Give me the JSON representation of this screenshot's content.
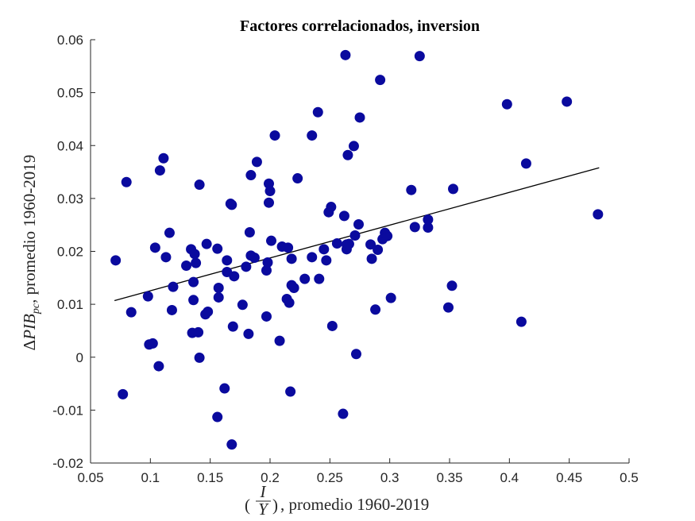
{
  "chart_data": {
    "type": "scatter",
    "title": "Factores correlacionados, inversion",
    "xlabel": "(I/Y), promedio 1960-2019",
    "ylabel": "ΔPIB_pc, promedio 1960-2019",
    "xlim": [
      0.05,
      0.5
    ],
    "ylim": [
      -0.02,
      0.06
    ],
    "xticks": [
      0.05,
      0.1,
      0.15,
      0.2,
      0.25,
      0.3,
      0.35,
      0.4,
      0.45,
      0.5
    ],
    "xtick_labels": [
      "0.05",
      "0.1",
      "0.15",
      "0.2",
      "0.25",
      "0.3",
      "0.35",
      "0.4",
      "0.45",
      "0.5"
    ],
    "yticks": [
      -0.02,
      -0.01,
      0,
      0.01,
      0.02,
      0.03,
      0.04,
      0.05,
      0.06
    ],
    "ytick_labels": [
      "-0.02",
      "-0.01",
      "0",
      "0.01",
      "0.02",
      "0.03",
      "0.04",
      "0.05",
      "0.06"
    ],
    "grid": false,
    "legend": "none",
    "marker_color": "#0a0a9e",
    "trend_line": {
      "x": [
        0.07,
        0.475
      ],
      "y": [
        0.0107,
        0.0358
      ],
      "color": "#000000"
    },
    "points": [
      {
        "x": 0.071,
        "y": 0.0183
      },
      {
        "x": 0.077,
        "y": -0.007
      },
      {
        "x": 0.08,
        "y": 0.0331
      },
      {
        "x": 0.084,
        "y": 0.0085
      },
      {
        "x": 0.098,
        "y": 0.0115
      },
      {
        "x": 0.099,
        "y": 0.0024
      },
      {
        "x": 0.102,
        "y": 0.0026
      },
      {
        "x": 0.104,
        "y": 0.0207
      },
      {
        "x": 0.107,
        "y": -0.0017
      },
      {
        "x": 0.108,
        "y": 0.0353
      },
      {
        "x": 0.111,
        "y": 0.0376
      },
      {
        "x": 0.113,
        "y": 0.0189
      },
      {
        "x": 0.116,
        "y": 0.0235
      },
      {
        "x": 0.118,
        "y": 0.0089
      },
      {
        "x": 0.119,
        "y": 0.0133
      },
      {
        "x": 0.13,
        "y": 0.0173
      },
      {
        "x": 0.134,
        "y": 0.0204
      },
      {
        "x": 0.135,
        "y": 0.0046
      },
      {
        "x": 0.136,
        "y": 0.0108
      },
      {
        "x": 0.136,
        "y": 0.0142
      },
      {
        "x": 0.137,
        "y": 0.0195
      },
      {
        "x": 0.138,
        "y": 0.0178
      },
      {
        "x": 0.14,
        "y": 0.0047
      },
      {
        "x": 0.141,
        "y": -0.0001
      },
      {
        "x": 0.141,
        "y": 0.0326
      },
      {
        "x": 0.146,
        "y": 0.0081
      },
      {
        "x": 0.147,
        "y": 0.0214
      },
      {
        "x": 0.148,
        "y": 0.0086
      },
      {
        "x": 0.156,
        "y": -0.0113
      },
      {
        "x": 0.156,
        "y": 0.0205
      },
      {
        "x": 0.157,
        "y": 0.0113
      },
      {
        "x": 0.157,
        "y": 0.0131
      },
      {
        "x": 0.162,
        "y": -0.0059
      },
      {
        "x": 0.164,
        "y": 0.0183
      },
      {
        "x": 0.164,
        "y": 0.0161
      },
      {
        "x": 0.167,
        "y": 0.029
      },
      {
        "x": 0.168,
        "y": -0.0165
      },
      {
        "x": 0.168,
        "y": 0.0288
      },
      {
        "x": 0.169,
        "y": 0.0058
      },
      {
        "x": 0.17,
        "y": 0.0153
      },
      {
        "x": 0.177,
        "y": 0.0099
      },
      {
        "x": 0.18,
        "y": 0.0171
      },
      {
        "x": 0.182,
        "y": 0.0044
      },
      {
        "x": 0.183,
        "y": 0.0236
      },
      {
        "x": 0.184,
        "y": 0.0344
      },
      {
        "x": 0.184,
        "y": 0.0192
      },
      {
        "x": 0.187,
        "y": 0.0188
      },
      {
        "x": 0.189,
        "y": 0.0369
      },
      {
        "x": 0.197,
        "y": 0.0077
      },
      {
        "x": 0.197,
        "y": 0.0164
      },
      {
        "x": 0.198,
        "y": 0.0179
      },
      {
        "x": 0.199,
        "y": 0.0292
      },
      {
        "x": 0.199,
        "y": 0.0328
      },
      {
        "x": 0.2,
        "y": 0.0314
      },
      {
        "x": 0.201,
        "y": 0.022
      },
      {
        "x": 0.204,
        "y": 0.0419
      },
      {
        "x": 0.208,
        "y": 0.0031
      },
      {
        "x": 0.21,
        "y": 0.0209
      },
      {
        "x": 0.214,
        "y": 0.011
      },
      {
        "x": 0.215,
        "y": 0.0207
      },
      {
        "x": 0.216,
        "y": 0.0103
      },
      {
        "x": 0.217,
        "y": -0.0065
      },
      {
        "x": 0.218,
        "y": 0.0186
      },
      {
        "x": 0.218,
        "y": 0.0136
      },
      {
        "x": 0.22,
        "y": 0.0131
      },
      {
        "x": 0.223,
        "y": 0.0338
      },
      {
        "x": 0.229,
        "y": 0.0148
      },
      {
        "x": 0.235,
        "y": 0.0189
      },
      {
        "x": 0.235,
        "y": 0.0419
      },
      {
        "x": 0.24,
        "y": 0.0463
      },
      {
        "x": 0.241,
        "y": 0.0148
      },
      {
        "x": 0.245,
        "y": 0.0204
      },
      {
        "x": 0.247,
        "y": 0.0183
      },
      {
        "x": 0.249,
        "y": 0.0274
      },
      {
        "x": 0.251,
        "y": 0.0284
      },
      {
        "x": 0.252,
        "y": 0.0059
      },
      {
        "x": 0.256,
        "y": 0.0215
      },
      {
        "x": 0.261,
        "y": -0.0107
      },
      {
        "x": 0.262,
        "y": 0.0267
      },
      {
        "x": 0.263,
        "y": 0.0571
      },
      {
        "x": 0.264,
        "y": 0.0213
      },
      {
        "x": 0.264,
        "y": 0.0204
      },
      {
        "x": 0.265,
        "y": 0.0382
      },
      {
        "x": 0.266,
        "y": 0.0214
      },
      {
        "x": 0.27,
        "y": 0.0399
      },
      {
        "x": 0.271,
        "y": 0.023
      },
      {
        "x": 0.272,
        "y": 0.0006
      },
      {
        "x": 0.274,
        "y": 0.0251
      },
      {
        "x": 0.275,
        "y": 0.0453
      },
      {
        "x": 0.284,
        "y": 0.0213
      },
      {
        "x": 0.285,
        "y": 0.0186
      },
      {
        "x": 0.288,
        "y": 0.009
      },
      {
        "x": 0.29,
        "y": 0.0203
      },
      {
        "x": 0.292,
        "y": 0.0524
      },
      {
        "x": 0.294,
        "y": 0.0223
      },
      {
        "x": 0.296,
        "y": 0.0235
      },
      {
        "x": 0.298,
        "y": 0.0229
      },
      {
        "x": 0.301,
        "y": 0.0112
      },
      {
        "x": 0.318,
        "y": 0.0316
      },
      {
        "x": 0.321,
        "y": 0.0246
      },
      {
        "x": 0.325,
        "y": 0.0569
      },
      {
        "x": 0.332,
        "y": 0.0245
      },
      {
        "x": 0.332,
        "y": 0.026
      },
      {
        "x": 0.349,
        "y": 0.0094
      },
      {
        "x": 0.352,
        "y": 0.0135
      },
      {
        "x": 0.353,
        "y": 0.0318
      },
      {
        "x": 0.398,
        "y": 0.0478
      },
      {
        "x": 0.41,
        "y": 0.0067
      },
      {
        "x": 0.414,
        "y": 0.0366
      },
      {
        "x": 0.448,
        "y": 0.0483
      },
      {
        "x": 0.474,
        "y": 0.027
      }
    ]
  }
}
